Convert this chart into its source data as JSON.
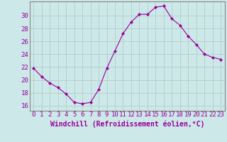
{
  "x": [
    0,
    1,
    2,
    3,
    4,
    5,
    6,
    7,
    8,
    9,
    10,
    11,
    12,
    13,
    14,
    15,
    16,
    17,
    18,
    19,
    20,
    21,
    22,
    23
  ],
  "y": [
    21.8,
    20.5,
    19.5,
    18.8,
    17.8,
    16.5,
    16.3,
    16.5,
    18.5,
    21.8,
    24.5,
    27.2,
    29.0,
    30.2,
    30.2,
    31.3,
    31.5,
    29.5,
    28.5,
    26.8,
    25.5,
    24.0,
    23.5,
    23.2
  ],
  "line_color": "#990099",
  "marker": "D",
  "marker_size": 2,
  "bg_color": "#cce8e8",
  "grid_color": "#b0c8c8",
  "xlabel": "Windchill (Refroidissement éolien,°C)",
  "yticks": [
    16,
    18,
    20,
    22,
    24,
    26,
    28,
    30
  ],
  "xticks": [
    0,
    1,
    2,
    3,
    4,
    5,
    6,
    7,
    8,
    9,
    10,
    11,
    12,
    13,
    14,
    15,
    16,
    17,
    18,
    19,
    20,
    21,
    22,
    23
  ],
  "ylim": [
    15.2,
    32.2
  ],
  "xlim": [
    -0.5,
    23.5
  ],
  "xlabel_fontsize": 7,
  "tick_fontsize": 6.5
}
